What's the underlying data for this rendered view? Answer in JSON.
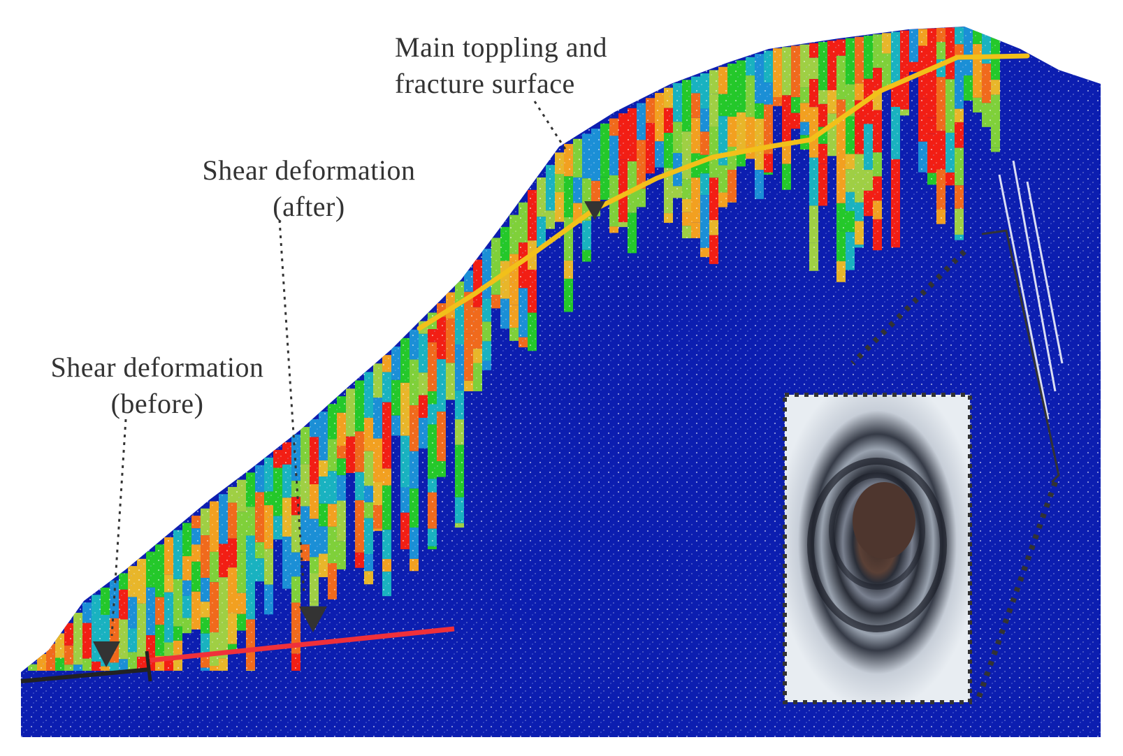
{
  "figure": {
    "colors": {
      "background": "#ffffff",
      "rock_mass": "#0c1eb0",
      "fracture_line": "#f2c01a",
      "shear_line_after": "#f0303a",
      "shear_line_before": "#222222",
      "annotation_text": "#333333",
      "blocks": [
        "#24c82a",
        "#7fd03a",
        "#19b2c0",
        "#1b8fd6",
        "#f2a020",
        "#f06a1c",
        "#f21e14",
        "#e8b62a",
        "#9fcf44"
      ]
    },
    "labels": {
      "fracture_line1": "Main toppling and",
      "fracture_line2": "fracture surface",
      "shear_after_line1": "Shear deformation",
      "shear_after_line2": "(after)",
      "shear_before_line1": "Shear deformation",
      "shear_before_line2": "(before)"
    },
    "inset": {
      "icon": "borehole-photo",
      "colors": [
        "#e8edf2",
        "#7a8190",
        "#2a2e38",
        "#5a4036"
      ]
    },
    "markers": {
      "icon": "triangle-down-icon",
      "count": 3
    }
  }
}
